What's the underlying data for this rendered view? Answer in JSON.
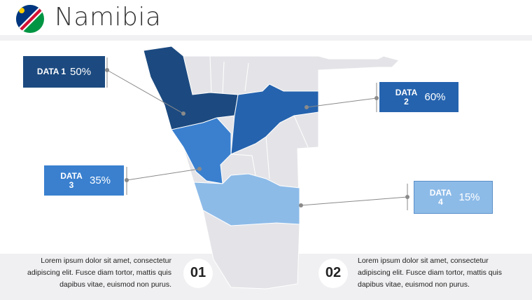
{
  "header": {
    "title": "Namibia"
  },
  "callouts": [
    {
      "label": "DATA 1",
      "value": "50%"
    },
    {
      "label": "DATA 2",
      "value": "60%"
    },
    {
      "label": "DATA 3",
      "value": "35%"
    },
    {
      "label": "DATA 4",
      "value": "15%"
    }
  ],
  "notes": [
    {
      "number": "01",
      "lines": [
        "Lorem ipsum dolor sit amet, consectetur",
        "adipiscing elit. Fusce diam tortor, mattis quis",
        "dapibus vitae, euismod non purus."
      ]
    },
    {
      "number": "02",
      "lines": [
        "Lorem ipsum dolor sit amet, consectetur",
        "adipiscing elit. Fusce diam tortor, mattis quis",
        "dapibus vitae, euismod non purus."
      ]
    }
  ]
}
